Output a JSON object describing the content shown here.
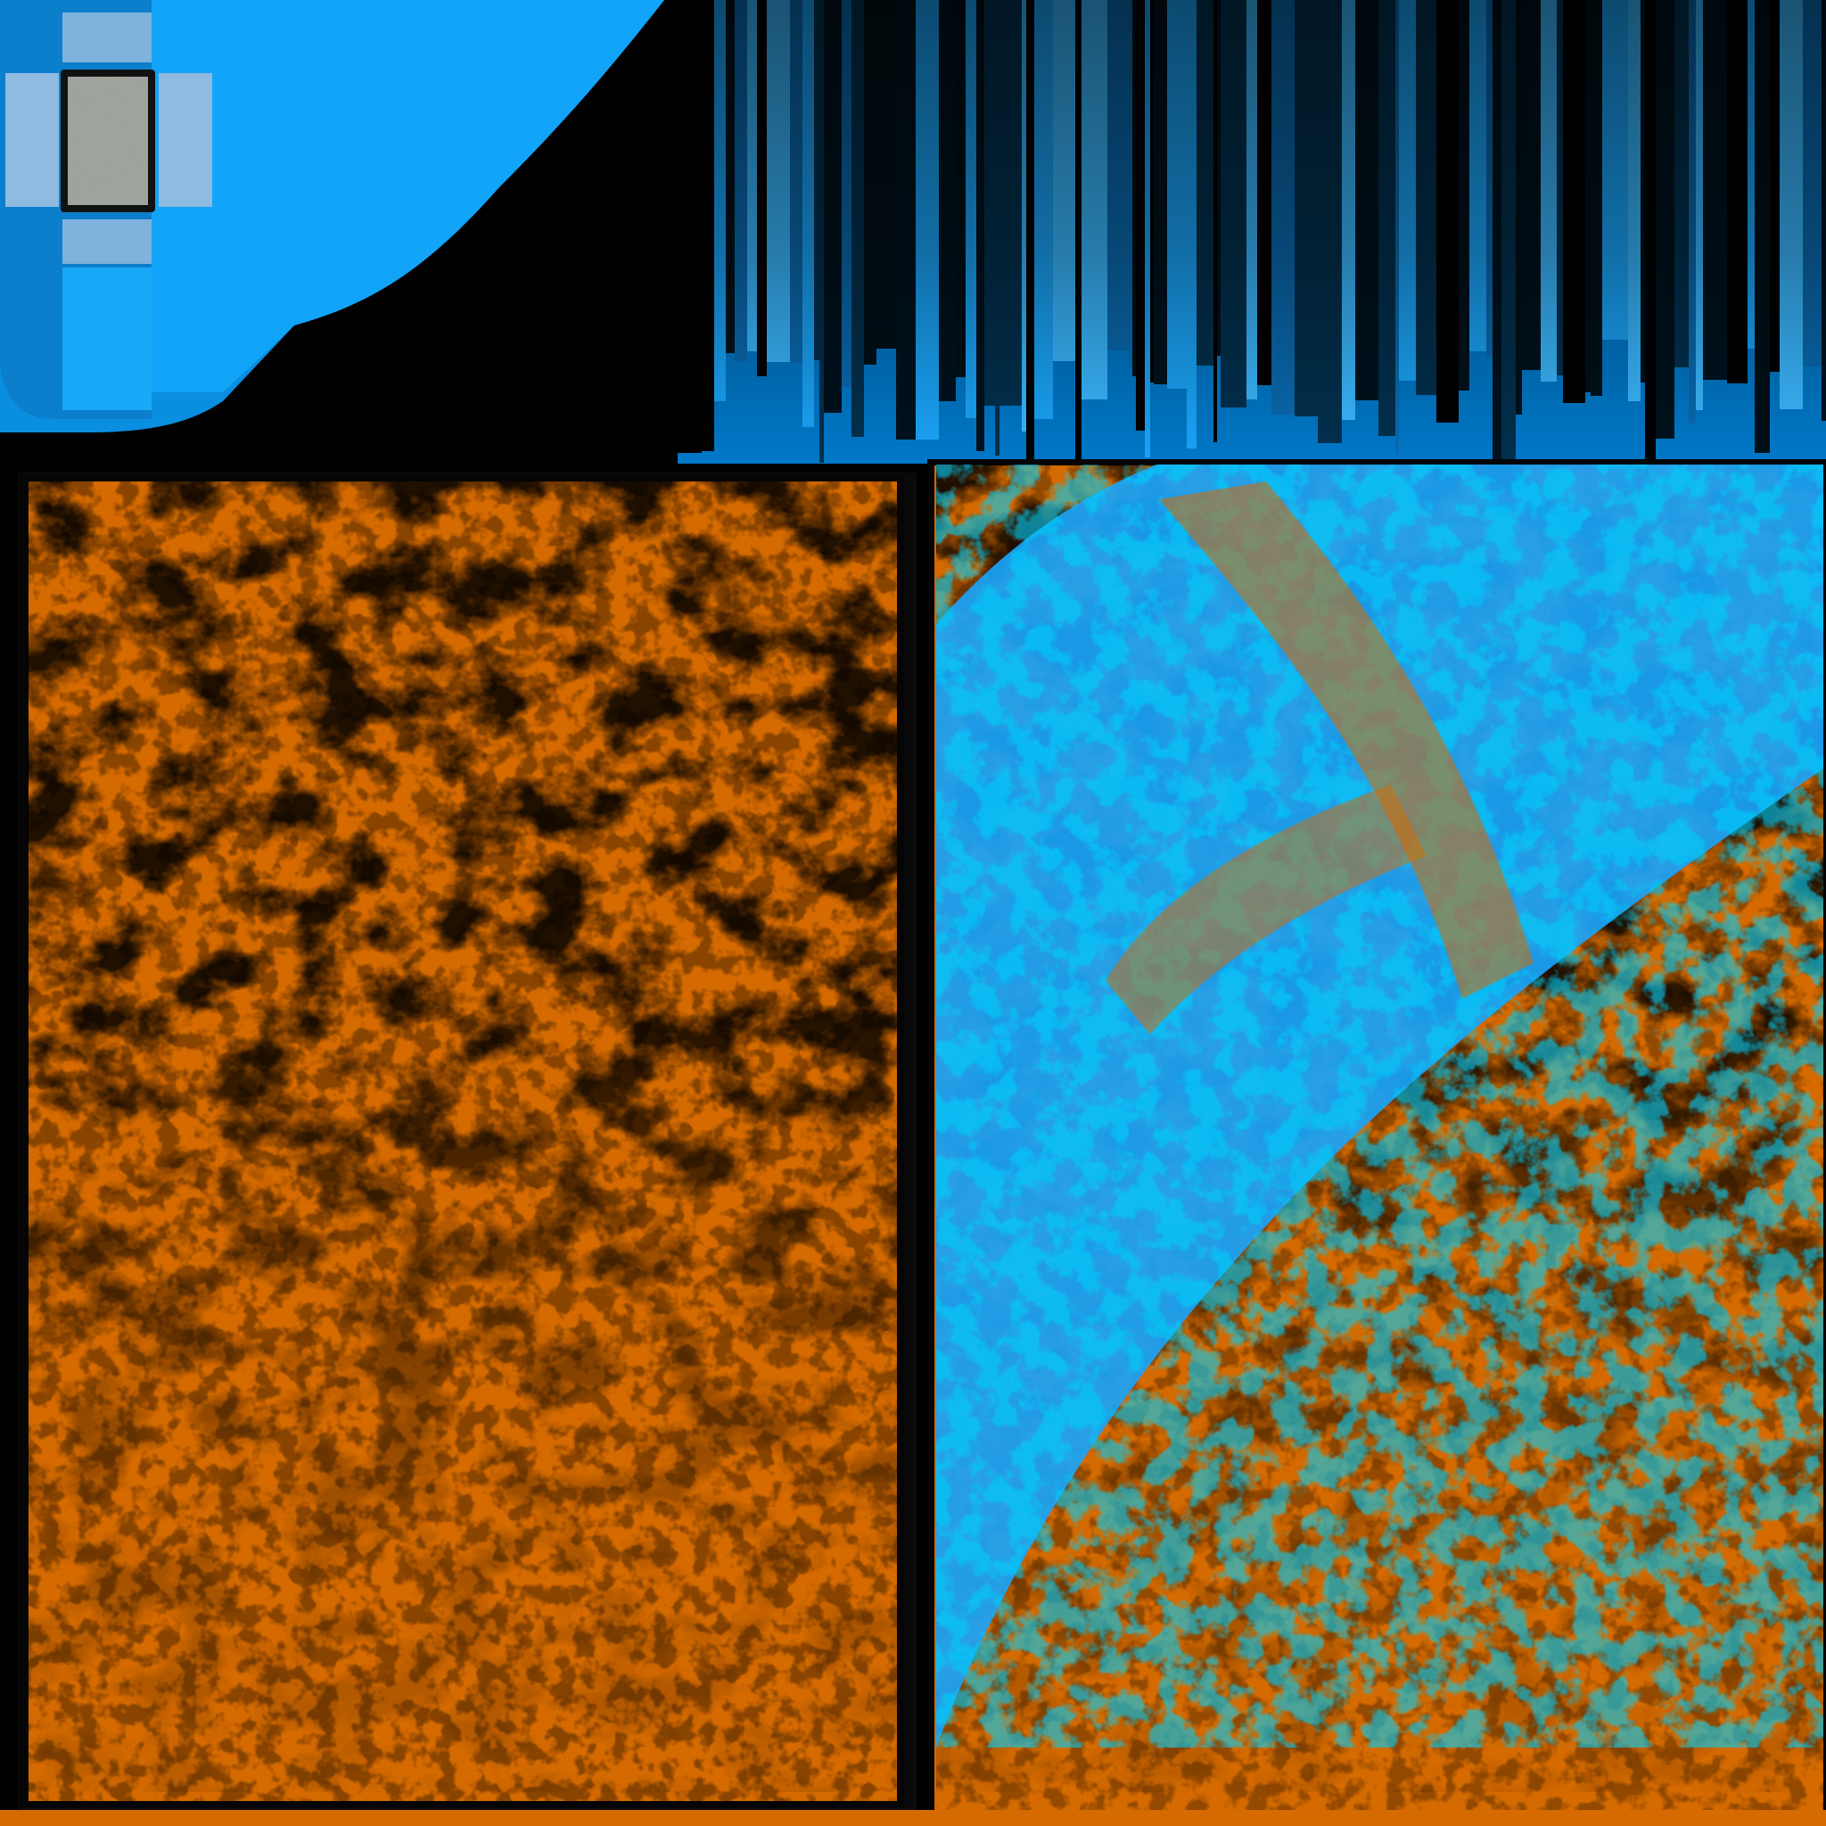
{
  "texture_atlas": {
    "colors": {
      "background": "#000000",
      "rust_orange": "#d46a00",
      "stain_black": "#000000",
      "paint_blue": "#00a0f8",
      "cross_blue": "#109ef0",
      "cross_pale": "#8fb8d8",
      "plate_grey": "#9ea39c",
      "frame_black": "#0a0a0a"
    },
    "regions": {
      "corner_trim": "blue-corner-trim",
      "vertical_streaks": "blue-vertical-streaks",
      "left_panel": "rusted-panel-plain",
      "right_panel": "rusted-panel-blue-paint"
    }
  }
}
